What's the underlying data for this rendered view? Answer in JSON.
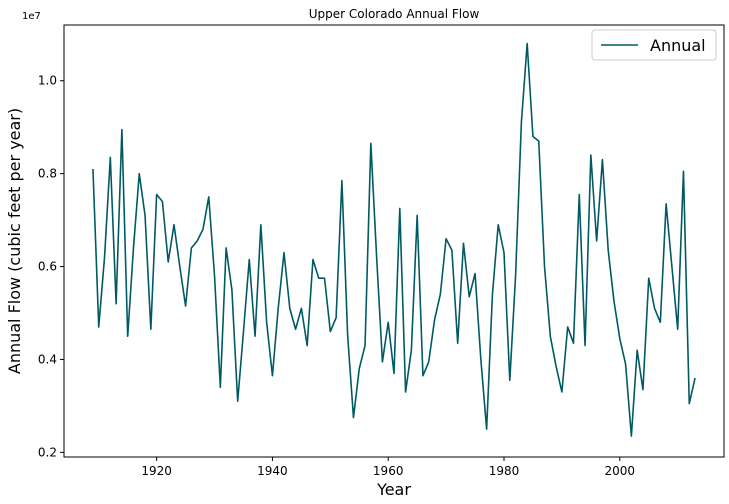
{
  "chart_data": {
    "type": "line",
    "title": "Upper Colorado Annual Flow",
    "xlabel": "Year",
    "ylabel": "Annual Flow (cubic feet per year)",
    "y_offset_label": "1e7",
    "xlim": [
      1904,
      2018
    ],
    "ylim": [
      1900000,
      11200000
    ],
    "x_ticks": [
      1920,
      1940,
      1960,
      1980,
      2000
    ],
    "y_ticks": [
      2000000,
      4000000,
      6000000,
      8000000,
      10000000
    ],
    "y_tick_labels": [
      "0.2",
      "0.4",
      "0.6",
      "0.8",
      "1.0"
    ],
    "legend_position": "upper-right",
    "grid": false,
    "series": [
      {
        "name": "Annual",
        "color": "#005a64",
        "x": [
          1909,
          1910,
          1911,
          1912,
          1913,
          1914,
          1915,
          1916,
          1917,
          1918,
          1919,
          1920,
          1921,
          1922,
          1923,
          1924,
          1925,
          1926,
          1927,
          1928,
          1929,
          1930,
          1931,
          1932,
          1933,
          1934,
          1935,
          1936,
          1937,
          1938,
          1939,
          1940,
          1941,
          1942,
          1943,
          1944,
          1945,
          1946,
          1947,
          1948,
          1949,
          1950,
          1951,
          1952,
          1953,
          1954,
          1955,
          1956,
          1957,
          1958,
          1959,
          1960,
          1961,
          1962,
          1963,
          1964,
          1965,
          1966,
          1967,
          1968,
          1969,
          1970,
          1971,
          1972,
          1973,
          1974,
          1975,
          1976,
          1977,
          1978,
          1979,
          1980,
          1981,
          1982,
          1983,
          1984,
          1985,
          1986,
          1987,
          1988,
          1989,
          1990,
          1991,
          1992,
          1993,
          1994,
          1995,
          1996,
          1997,
          1998,
          1999,
          2000,
          2001,
          2002,
          2003,
          2004,
          2005,
          2006,
          2007,
          2008,
          2009,
          2010,
          2011,
          2012,
          2013
        ],
        "values": [
          8100000,
          4700000,
          6200000,
          8350000,
          5200000,
          8950000,
          4500000,
          6400000,
          8000000,
          7100000,
          4650000,
          7550000,
          7400000,
          6100000,
          6900000,
          6000000,
          5150000,
          6400000,
          6550000,
          6800000,
          7500000,
          5800000,
          3400000,
          6400000,
          5500000,
          3100000,
          4600000,
          6150000,
          4500000,
          6900000,
          4800000,
          3650000,
          5100000,
          6300000,
          5100000,
          4650000,
          5100000,
          4300000,
          6150000,
          5750000,
          5750000,
          4600000,
          4900000,
          7850000,
          4500000,
          2750000,
          3800000,
          4300000,
          8650000,
          6200000,
          3950000,
          4800000,
          3700000,
          7250000,
          3300000,
          4200000,
          7100000,
          3650000,
          3950000,
          4850000,
          5400000,
          6600000,
          6350000,
          4350000,
          6500000,
          5350000,
          5850000,
          4000000,
          2500000,
          5400000,
          6900000,
          6300000,
          3550000,
          5800000,
          9100000,
          10800000,
          8800000,
          8700000,
          6000000,
          4500000,
          3850000,
          3300000,
          4700000,
          4350000,
          7550000,
          4300000,
          8400000,
          6550000,
          8300000,
          6350000,
          5250000,
          4450000,
          3900000,
          2350000,
          4200000,
          3350000,
          5750000,
          5100000,
          4800000,
          7350000,
          6000000,
          4650000,
          8050000,
          3050000,
          3600000
        ]
      }
    ]
  }
}
